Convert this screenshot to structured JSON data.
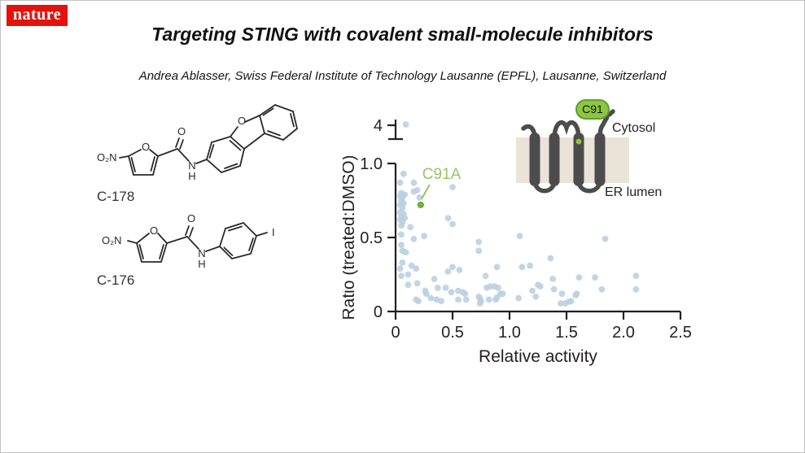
{
  "header": {
    "logo_text": "nature",
    "logo_bg": "#e3120b",
    "title": "Targeting STING with covalent small-molecule inhibitors",
    "subtitle": "Andrea Ablasser, Swiss Federal Institute of Technology Lausanne (EPFL), Lausanne, Switzerland"
  },
  "structures": {
    "c178": {
      "name": "C-178",
      "labels": {
        "nitro": "O₂N",
        "furan_o": "O",
        "carbonyl_o": "O",
        "amide_n": "N",
        "amide_h": "H",
        "dbf_o": "O"
      }
    },
    "c176": {
      "name": "C-176",
      "labels": {
        "nitro": "O₂N",
        "furan_o": "O",
        "carbonyl_o": "O",
        "amide_n": "N",
        "amide_h": "H",
        "iodo": "I"
      }
    }
  },
  "inset": {
    "badge": "C91",
    "cytosol": "Cytosol",
    "er_lumen": "ER lumen",
    "colors": {
      "membrane": "#e9e3d8",
      "helix": "#4c4c4c",
      "badge_bg": "#8dc63f",
      "badge_stroke": "#5f9e33",
      "site_dot": "#8dc63f",
      "text": "#231f20"
    }
  },
  "chart_data": {
    "type": "scatter",
    "title": "",
    "xlabel": "Relative activity",
    "ylabel": "Ratio (treated:DMSO)",
    "xlim": [
      0,
      2.5
    ],
    "ylim": [
      0,
      1.0
    ],
    "x_ticks": [
      0,
      0.5,
      1.0,
      1.5,
      2.0,
      2.5
    ],
    "x_tick_labels": [
      "0",
      "0.5",
      "1.0",
      "1.5",
      "2.0",
      "2.5"
    ],
    "y_ticks": [
      0,
      0.5,
      1.0
    ],
    "y_tick_labels": [
      "0",
      "0.5",
      "1.0"
    ],
    "broken_axis": {
      "tick_label": "4"
    },
    "axis_color": "#231f20",
    "point_color": "#b9cfe0",
    "grid": false,
    "legend": "none",
    "outlier": {
      "x": 0.09,
      "y": 4.0
    },
    "highlight": {
      "label": "C91A",
      "x": 0.22,
      "y": 0.72,
      "color": "#74ad41",
      "label_color": "#9ac368"
    },
    "points": [
      [
        0.07,
        0.93
      ],
      [
        0.04,
        0.87
      ],
      [
        0.16,
        0.87
      ],
      [
        0.19,
        0.82
      ],
      [
        0.16,
        0.81
      ],
      [
        0.05,
        0.8
      ],
      [
        0.08,
        0.79
      ],
      [
        0.04,
        0.78
      ],
      [
        0.06,
        0.77
      ],
      [
        0.21,
        0.77
      ],
      [
        0.05,
        0.75
      ],
      [
        0.07,
        0.73
      ],
      [
        0.04,
        0.72
      ],
      [
        0.06,
        0.7
      ],
      [
        0.04,
        0.67
      ],
      [
        0.07,
        0.66
      ],
      [
        0.05,
        0.64
      ],
      [
        0.08,
        0.63
      ],
      [
        0.04,
        0.62
      ],
      [
        0.06,
        0.6
      ],
      [
        0.05,
        0.58
      ],
      [
        0.13,
        0.57
      ],
      [
        0.05,
        0.52
      ],
      [
        0.25,
        0.51
      ],
      [
        0.16,
        0.49
      ],
      [
        0.05,
        0.45
      ],
      [
        0.06,
        0.41
      ],
      [
        0.09,
        0.4
      ],
      [
        0.06,
        0.33
      ],
      [
        0.14,
        0.31
      ],
      [
        0.04,
        0.29
      ],
      [
        0.18,
        0.29
      ],
      [
        0.11,
        0.25
      ],
      [
        0.05,
        0.24
      ],
      [
        0.19,
        0.19
      ],
      [
        0.11,
        0.18
      ],
      [
        0.18,
        0.08
      ],
      [
        0.2,
        0.07
      ],
      [
        0.5,
        0.84
      ],
      [
        0.46,
        0.63
      ],
      [
        0.5,
        0.59
      ],
      [
        0.5,
        0.3
      ],
      [
        0.46,
        0.27
      ],
      [
        0.34,
        0.22
      ],
      [
        0.37,
        0.16
      ],
      [
        0.26,
        0.14
      ],
      [
        0.27,
        0.12
      ],
      [
        0.44,
        0.16
      ],
      [
        0.49,
        0.13
      ],
      [
        0.31,
        0.09
      ],
      [
        0.36,
        0.08
      ],
      [
        0.4,
        0.07
      ],
      [
        0.73,
        0.47
      ],
      [
        0.73,
        0.41
      ],
      [
        0.56,
        0.28
      ],
      [
        0.89,
        0.3
      ],
      [
        0.79,
        0.24
      ],
      [
        0.55,
        0.14
      ],
      [
        0.59,
        0.13
      ],
      [
        0.61,
        0.12
      ],
      [
        0.55,
        0.08
      ],
      [
        0.62,
        0.08
      ],
      [
        0.74,
        0.09
      ],
      [
        0.74,
        0.055
      ],
      [
        0.8,
        0.16
      ],
      [
        0.83,
        0.17
      ],
      [
        0.87,
        0.17
      ],
      [
        0.9,
        0.16
      ],
      [
        0.92,
        0.12
      ],
      [
        0.94,
        0.12
      ],
      [
        0.89,
        0.095
      ],
      [
        0.88,
        0.08
      ],
      [
        0.82,
        0.08
      ],
      [
        0.75,
        0.07
      ],
      [
        0.73,
        0.1
      ],
      [
        1.09,
        0.51
      ],
      [
        1.11,
        0.3
      ],
      [
        1.18,
        0.31
      ],
      [
        1.36,
        0.36
      ],
      [
        1.61,
        0.23
      ],
      [
        1.38,
        0.22
      ],
      [
        1.25,
        0.18
      ],
      [
        1.27,
        0.17
      ],
      [
        1.39,
        0.15
      ],
      [
        1.46,
        0.12
      ],
      [
        1.58,
        0.11
      ],
      [
        1.08,
        0.09
      ],
      [
        1.2,
        0.14
      ],
      [
        1.23,
        0.1
      ],
      [
        1.45,
        0.055
      ],
      [
        1.49,
        0.055
      ],
      [
        1.52,
        0.066
      ],
      [
        1.84,
        0.49
      ],
      [
        1.75,
        0.23
      ],
      [
        1.81,
        0.15
      ],
      [
        2.11,
        0.24
      ],
      [
        2.11,
        0.15
      ],
      [
        1.54,
        0.07
      ],
      [
        1.59,
        0.12
      ]
    ]
  }
}
